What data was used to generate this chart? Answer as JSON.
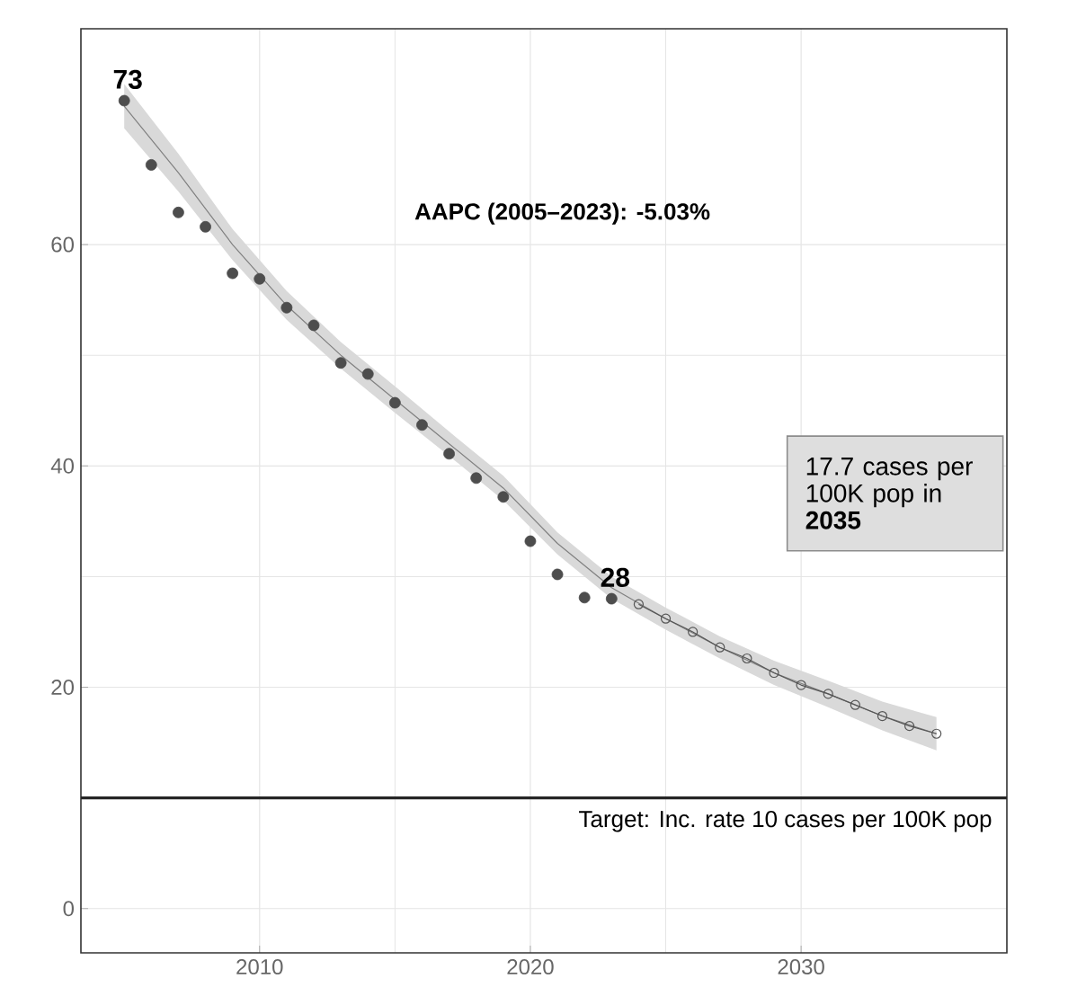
{
  "chart_data": {
    "type": "scatter",
    "x": [
      2005,
      2006,
      2007,
      2008,
      2009,
      2010,
      2011,
      2012,
      2013,
      2014,
      2015,
      2016,
      2017,
      2018,
      2019,
      2020,
      2021,
      2022,
      2023
    ],
    "series": [
      {
        "type": "line",
        "color": "#808080",
        "marker": "none",
        "x": [
          2005,
          2007,
          2009,
          2011,
          2013,
          2015,
          2017,
          2019,
          2021,
          2023,
          2025,
          2027,
          2029,
          2031,
          2033,
          2035
        ],
        "values": [
          72.5,
          66.5,
          60,
          54.5,
          50,
          46,
          42,
          38,
          33,
          29,
          26.2,
          23.6,
          21.3,
          19.4,
          17.4,
          15.8
        ],
        "lower": [
          70.5,
          64.8,
          58.6,
          53.2,
          48.8,
          44.8,
          40.9,
          36.9,
          32,
          28,
          25.2,
          22.6,
          20.2,
          18.2,
          16.1,
          14.3
        ],
        "upper": [
          74.5,
          68.2,
          61.4,
          55.8,
          51.2,
          47.2,
          43.1,
          39.1,
          34,
          30,
          27.2,
          24.6,
          22.4,
          20.6,
          18.7,
          17.3
        ]
      },
      {
        "color": "#4d4d4d",
        "marker": "circle",
        "values": [
          73,
          67.2,
          62.9,
          61.6,
          57.4,
          56.9,
          54.3,
          52.7,
          49.3,
          48.3,
          45.7,
          43.7,
          41.1,
          38.9,
          37.2,
          33.2,
          30.2,
          28.1,
          28
        ]
      },
      {
        "type": "line",
        "color": "#555555",
        "marker": "circle",
        "x": [
          2024,
          2025,
          2026,
          2027,
          2028,
          2029,
          2030,
          2031,
          2032,
          2033,
          2034,
          2035
        ],
        "values": [
          27.5,
          26.2,
          25.0,
          23.6,
          22.6,
          21.3,
          20.2,
          19.4,
          18.4,
          17.4,
          16.5,
          15.8
        ]
      }
    ],
    "xlim": [
      2003.4,
      2037.6
    ],
    "ylim": [
      -4,
      79.5
    ],
    "xticks": [
      2010,
      2020,
      2030
    ],
    "yticks": [
      0,
      20,
      40,
      60
    ],
    "grid": true,
    "ref_lines": [
      {
        "axis": "y",
        "value": 10,
        "label": "Target: Inc. rate 10 cases per 100K pop",
        "color": "#262626"
      }
    ],
    "annotations": [
      {
        "text": "73",
        "x": 2005,
        "y": 73
      },
      {
        "text": "28",
        "x": 2023,
        "y": 28
      },
      "AAPC (2005–2023): -5.03%",
      "17.7 cases per 100K pop in **2035**"
    ]
  }
}
